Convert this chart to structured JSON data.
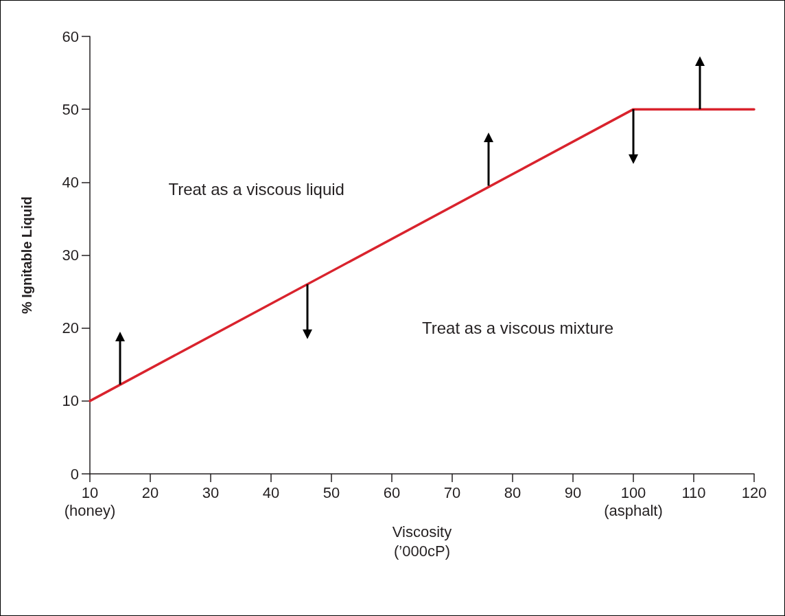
{
  "chart_data": {
    "type": "line",
    "xlabel": "Viscosity\n(’000cP)",
    "ylabel": "% Ignitable Liquid",
    "x": [
      10,
      100,
      120
    ],
    "series": [
      {
        "color": "#d9232d",
        "values": [
          10,
          50,
          50
        ]
      }
    ],
    "xlim": [
      10,
      120
    ],
    "xticks": [
      {
        "value": 10,
        "label": "10\n(honey)"
      },
      20,
      30,
      40,
      50,
      60,
      70,
      80,
      90,
      {
        "value": 100,
        "label": "100\n(asphalt)"
      },
      110,
      120
    ],
    "ylim": [
      0,
      60
    ],
    "yticks": [
      0,
      10,
      20,
      30,
      40,
      50,
      60
    ],
    "annotations": [
      "Treat as a viscous liquid",
      "Treat as a viscous mixture"
    ],
    "grid": false,
    "marker": "none",
    "line_style": "solid"
  }
}
